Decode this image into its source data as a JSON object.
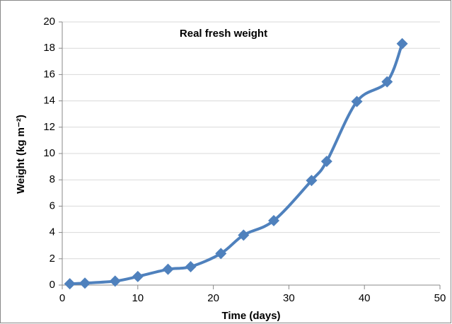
{
  "chart_data": {
    "type": "line",
    "title": "Real fresh weight",
    "xlabel": "Time (days)",
    "ylabel": "Weight (kg m⁻²)",
    "series": [
      {
        "name": "Real fresh weight",
        "color": "#4f81bd",
        "x": [
          1,
          3,
          7,
          10,
          14,
          17,
          21,
          24,
          28,
          33,
          35,
          39,
          43,
          45
        ],
        "values": [
          0.1,
          0.15,
          0.3,
          0.65,
          1.2,
          1.4,
          2.4,
          3.8,
          4.9,
          7.95,
          9.4,
          13.95,
          15.45,
          18.35
        ]
      }
    ],
    "xlim": [
      0,
      50
    ],
    "xticks": [
      0,
      10,
      20,
      30,
      40,
      50
    ],
    "ylim": [
      0,
      20
    ],
    "yticks": [
      0,
      2,
      4,
      6,
      8,
      10,
      12,
      14,
      16,
      18,
      20
    ],
    "grid": true
  }
}
